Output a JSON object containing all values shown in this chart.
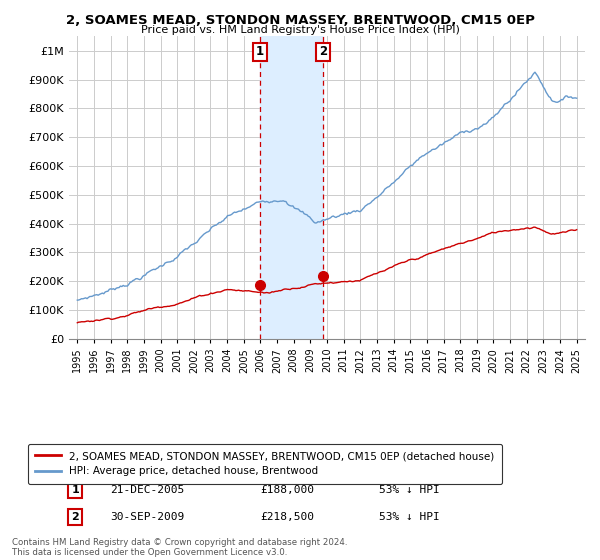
{
  "title": "2, SOAMES MEAD, STONDON MASSEY, BRENTWOOD, CM15 0EP",
  "subtitle": "Price paid vs. HM Land Registry's House Price Index (HPI)",
  "ylabel_ticks": [
    "£0",
    "£100K",
    "£200K",
    "£300K",
    "£400K",
    "£500K",
    "£600K",
    "£700K",
    "£800K",
    "£900K",
    "£1M"
  ],
  "ytick_values": [
    0,
    100000,
    200000,
    300000,
    400000,
    500000,
    600000,
    700000,
    800000,
    900000,
    1000000
  ],
  "ylim": [
    0,
    1050000
  ],
  "xlim_start": 1994.5,
  "xlim_end": 2025.5,
  "purchase1_x": 2005.97,
  "purchase1_y": 188000,
  "purchase2_x": 2009.75,
  "purchase2_y": 218500,
  "purchase1_label": "21-DEC-2005",
  "purchase1_price": "£188,000",
  "purchase1_hpi": "53% ↓ HPI",
  "purchase2_label": "30-SEP-2009",
  "purchase2_price": "£218,500",
  "purchase2_hpi": "53% ↓ HPI",
  "red_line_color": "#cc0000",
  "blue_line_color": "#6699cc",
  "shaded_color": "#ddeeff",
  "background_color": "#ffffff",
  "grid_color": "#cccccc",
  "legend_label_red": "2, SOAMES MEAD, STONDON MASSEY, BRENTWOOD, CM15 0EP (detached house)",
  "legend_label_blue": "HPI: Average price, detached house, Brentwood",
  "footnote": "Contains HM Land Registry data © Crown copyright and database right 2024.\nThis data is licensed under the Open Government Licence v3.0."
}
